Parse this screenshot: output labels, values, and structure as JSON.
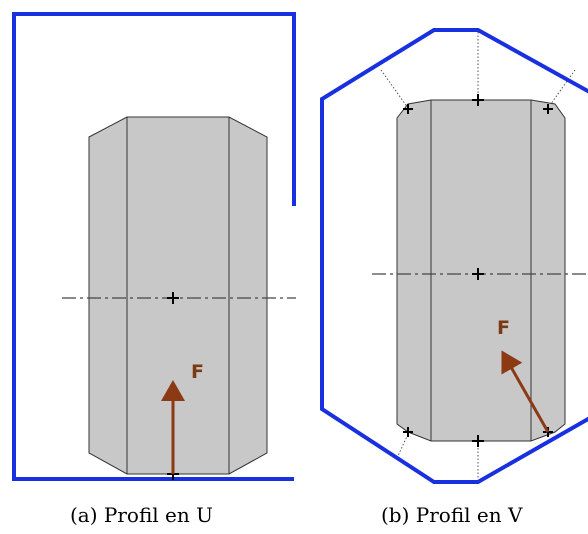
{
  "subfigures": [
    {
      "caption": "(a) Profil en U",
      "force_label": "F"
    },
    {
      "caption": "(b) Profil en V",
      "force_label": "F"
    }
  ],
  "colors": {
    "profile_outline": "#1830e0",
    "part_fill": "#c8c8c8",
    "part_edge": "#333333",
    "force_arrow": "#8b3a14",
    "background": "#ffffff"
  }
}
